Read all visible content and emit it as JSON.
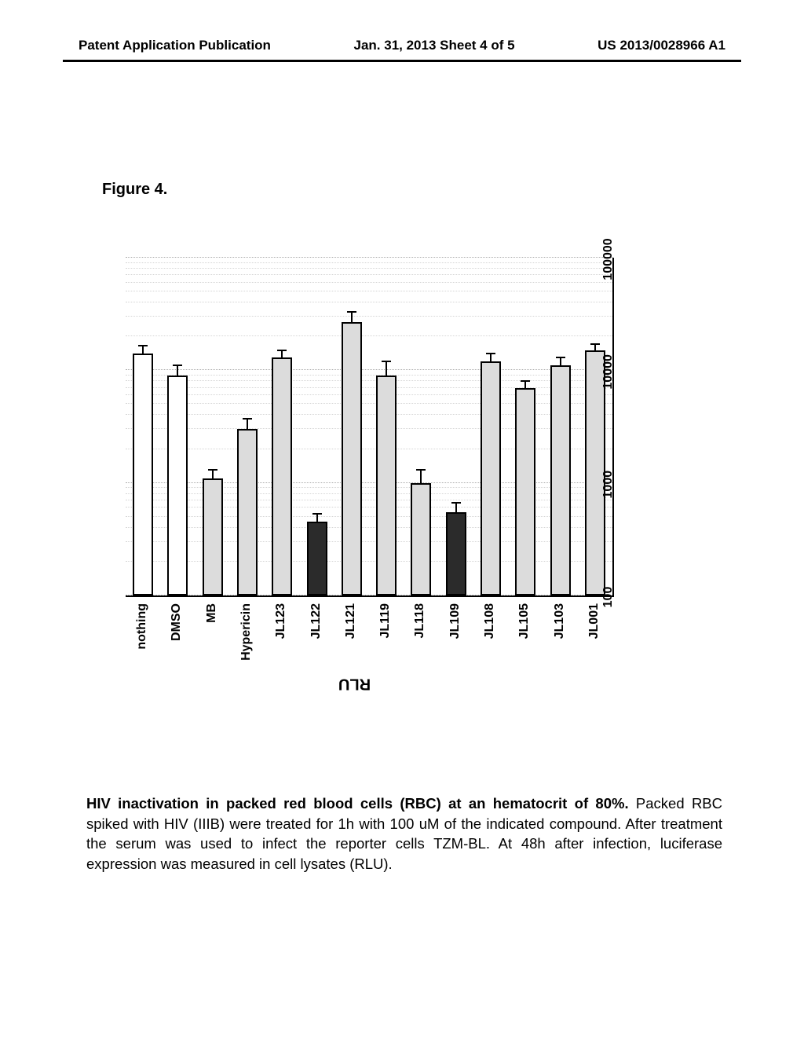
{
  "header": {
    "left": "Patent Application Publication",
    "center": "Jan. 31, 2013  Sheet 4 of 5",
    "right": "US 2013/0028966 A1"
  },
  "figure_label": "Figure 4.",
  "chart": {
    "type": "bar",
    "orientation": "horizontal-rotated",
    "y_axis_label": "RLU",
    "scale": "log",
    "xlim": [
      100,
      100000
    ],
    "ticks": [
      100,
      1000,
      10000,
      100000
    ],
    "tick_labels": [
      "100",
      "1000",
      "10000",
      "100000"
    ],
    "grid_color": "#aaaaaa",
    "bar_border_color": "#000000",
    "colors": {
      "light": "#dcdcdc",
      "dark": "#2b2b2b",
      "white": "#ffffff"
    },
    "categories": [
      {
        "label": "JL001",
        "value": 15000,
        "err": 2000,
        "fill": "light"
      },
      {
        "label": "JL103",
        "value": 11000,
        "err": 2000,
        "fill": "light"
      },
      {
        "label": "JL105",
        "value": 7000,
        "err": 1000,
        "fill": "light"
      },
      {
        "label": "JL108",
        "value": 12000,
        "err": 2000,
        "fill": "light"
      },
      {
        "label": "JL109",
        "value": 550,
        "err": 120,
        "fill": "dark"
      },
      {
        "label": "JL118",
        "value": 1000,
        "err": 300,
        "fill": "light"
      },
      {
        "label": "JL119",
        "value": 9000,
        "err": 3000,
        "fill": "light"
      },
      {
        "label": "JL121",
        "value": 27000,
        "err": 6000,
        "fill": "light"
      },
      {
        "label": "JL122",
        "value": 450,
        "err": 80,
        "fill": "dark"
      },
      {
        "label": "JL123",
        "value": 13000,
        "err": 2000,
        "fill": "light"
      },
      {
        "label": "Hypericin",
        "value": 3000,
        "err": 700,
        "fill": "light"
      },
      {
        "label": "MB",
        "value": 1100,
        "err": 200,
        "fill": "light"
      },
      {
        "label": "DMSO",
        "value": 9000,
        "err": 2000,
        "fill": "white"
      },
      {
        "label": "nothing",
        "value": 14000,
        "err": 2500,
        "fill": "white"
      }
    ]
  },
  "caption": {
    "bold": "HIV inactivation in packed red blood cells (RBC) at an hematocrit of 80%.",
    "rest": " Packed RBC spiked with HIV (IIIB) were treated for 1h with 100 uM of the indicated compound. After treatment the serum was used to infect the reporter cells TZM-BL. At 48h after infection, luciferase expression was measured in cell lysates (RLU)."
  }
}
